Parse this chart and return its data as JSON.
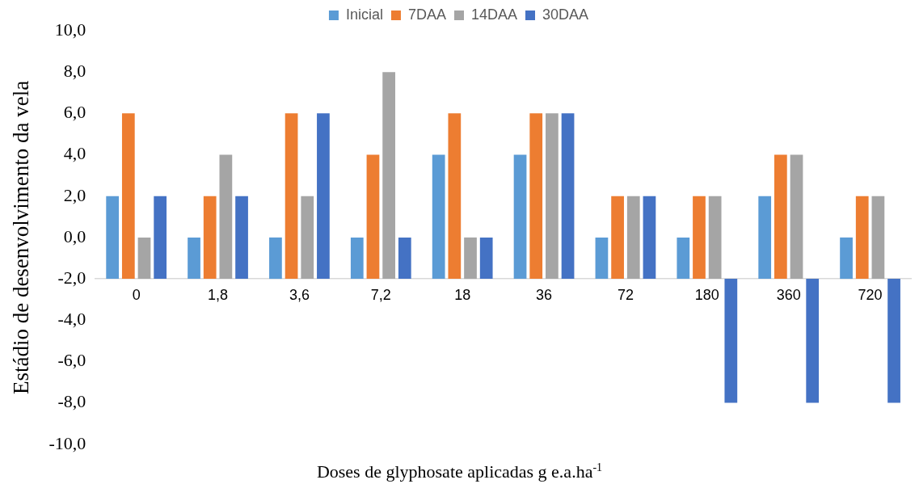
{
  "chart_data": {
    "type": "bar",
    "xlabel": "Doses de glyphosate aplicadas g e.a.ha$^{-1}$",
    "ylabel": "Estádio de desenvolvimento da vela",
    "categories": [
      "0",
      "1,8",
      "3,6",
      "7,2",
      "18",
      "36",
      "72",
      "180",
      "360",
      "720"
    ],
    "series": [
      {
        "name": "Inicial",
        "color": "#5b9bd5",
        "base": [
          -2,
          -2,
          -2,
          -2,
          -2,
          -2,
          -2,
          -2,
          -2,
          -2
        ],
        "values": [
          4,
          2,
          2,
          2,
          6,
          6,
          2,
          2,
          4,
          2
        ]
      },
      {
        "name": "7DAA",
        "color": "#ed7d31",
        "base": [
          -2,
          -2,
          -2,
          -2,
          -2,
          -2,
          -2,
          -2,
          -2,
          -2
        ],
        "values": [
          8,
          4,
          8,
          6,
          8,
          8,
          4,
          4,
          6,
          4
        ]
      },
      {
        "name": "14DAA",
        "color": "#a5a5a5",
        "base": [
          -2,
          -2,
          -2,
          -2,
          -2,
          -2,
          -2,
          -2,
          -2,
          -2
        ],
        "values": [
          2,
          6,
          4,
          10,
          2,
          8,
          4,
          4,
          6,
          4
        ]
      },
      {
        "name": "30DAA",
        "color": "#4472c4",
        "base": [
          -2,
          -2,
          -2,
          -2,
          -2,
          -2,
          -2,
          -2,
          -2,
          -2
        ],
        "values": [
          4,
          4,
          8,
          2,
          2,
          8,
          4,
          -6,
          -6,
          -6
        ]
      }
    ],
    "ylim": [
      -10,
      10
    ],
    "yticks": [
      {
        "value": -10,
        "label": "-10,0"
      },
      {
        "value": -8,
        "label": "-8,0"
      },
      {
        "value": -6,
        "label": "-6,0"
      },
      {
        "value": -4,
        "label": "-4,0"
      },
      {
        "value": -2,
        "label": "-2,0"
      },
      {
        "value": 0,
        "label": "0,0"
      },
      {
        "value": 2,
        "label": "2,0"
      },
      {
        "value": 4,
        "label": "4,0"
      },
      {
        "value": 6,
        "label": "6,0"
      },
      {
        "value": 8,
        "label": "8,0"
      },
      {
        "value": 10,
        "label": "10,0"
      }
    ],
    "grid": false,
    "legend": "top"
  }
}
